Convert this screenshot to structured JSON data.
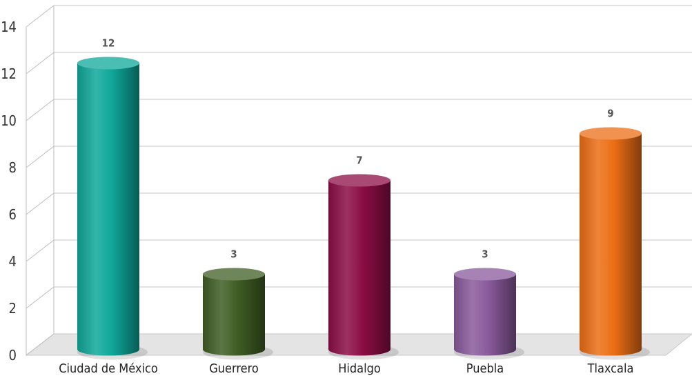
{
  "chart_data": {
    "type": "bar",
    "style": "3d-cylinder",
    "categories": [
      "Ciudad de México",
      "Guerrero",
      "Hidalgo",
      "Puebla",
      "Tlaxcala"
    ],
    "values": [
      12,
      3,
      7,
      3,
      9
    ],
    "value_labels": [
      "12",
      "3",
      "7",
      "3",
      "9"
    ],
    "colors": [
      "#0fa89a",
      "#3f5e24",
      "#8c0d45",
      "#8a5a9c",
      "#ec6e15"
    ],
    "y_ticks": [
      "0",
      "2",
      "4",
      "6",
      "8",
      "10",
      "12",
      "14"
    ],
    "ylim": [
      0,
      14
    ],
    "grid": true,
    "legend": "none",
    "title": "",
    "xlabel": "",
    "ylabel": ""
  }
}
